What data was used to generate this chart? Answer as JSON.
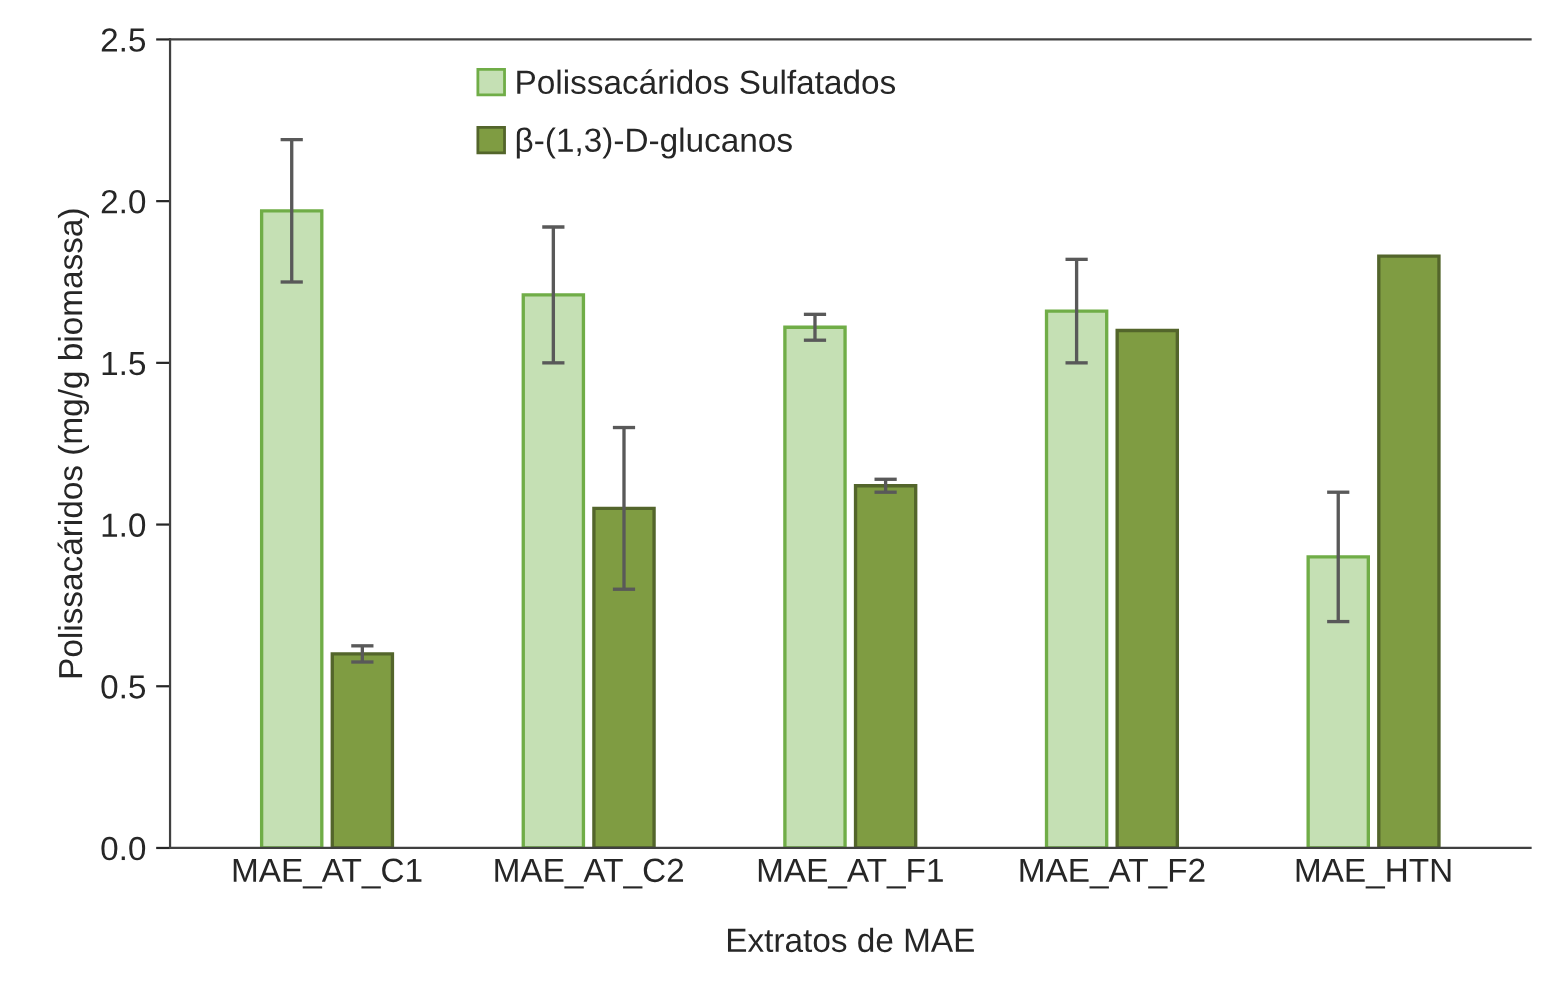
{
  "chart_data": {
    "type": "bar",
    "xlabel": "Extratos de MAE",
    "ylabel": "Polissacáridos (mg/g biomassa)",
    "categories": [
      "MAE_AT_C1",
      "MAE_AT_C2",
      "MAE_AT_F1",
      "MAE_AT_F2",
      "MAE_HTN"
    ],
    "series": [
      {
        "name": "Polissacáridos Sulfatados",
        "color": "#c5e0b4",
        "values": [
          1.97,
          1.71,
          1.61,
          1.66,
          0.9
        ],
        "errors": [
          0.22,
          0.21,
          0.04,
          0.16,
          0.2
        ]
      },
      {
        "name": "β-(1,3)-D-glucanos",
        "color": "#7f9c42",
        "values": [
          0.6,
          1.05,
          1.12,
          1.6,
          1.83
        ],
        "errors": [
          0.025,
          0.25,
          0.02,
          null,
          null
        ]
      }
    ],
    "ylim": [
      0,
      2.5
    ],
    "yticks": [
      {
        "value": 0,
        "label": "0.0"
      },
      {
        "value": 0.5,
        "label": "0.5"
      },
      {
        "value": 1,
        "label": "1.0"
      },
      {
        "value": 1.5,
        "label": "1.5"
      },
      {
        "value": 2,
        "label": "2.0"
      },
      {
        "value": 2.5,
        "label": "2.5"
      }
    ],
    "grid": false,
    "legend": "top"
  }
}
